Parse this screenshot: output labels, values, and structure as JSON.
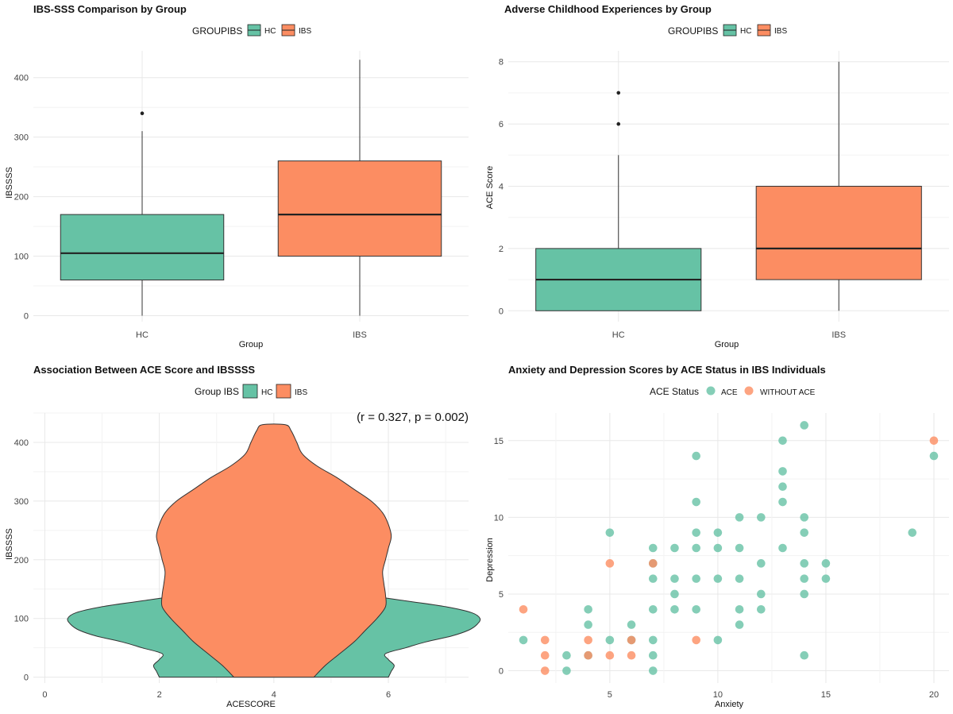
{
  "colors": {
    "hc": "#66C2A5",
    "ibs": "#FC8D62"
  },
  "chart_data": [
    {
      "type": "box",
      "title": "IBS-SSS Comparison by Group",
      "legend_title": "GROUPIBS",
      "legend": [
        "HC",
        "IBS"
      ],
      "xlabel": "Group",
      "ylabel": "IBSSSS",
      "categories": [
        "HC",
        "IBS"
      ],
      "ylim": [
        -10,
        445
      ],
      "yticks": [
        0,
        100,
        200,
        300,
        400
      ],
      "boxes": [
        {
          "name": "HC",
          "min": 0,
          "q1": 60,
          "median": 105,
          "q3": 170,
          "max": 310,
          "outliers": [
            340
          ]
        },
        {
          "name": "IBS",
          "min": 0,
          "q1": 100,
          "median": 170,
          "q3": 260,
          "max": 430,
          "outliers": []
        }
      ]
    },
    {
      "type": "box",
      "title": "Adverse Childhood Experiences by Group",
      "legend_title": "GROUPIBS",
      "legend": [
        "HC",
        "IBS"
      ],
      "xlabel": "Group",
      "ylabel": "ACE Score",
      "categories": [
        "HC",
        "IBS"
      ],
      "ylim": [
        -0.35,
        8.35
      ],
      "yticks": [
        0,
        2,
        4,
        6,
        8
      ],
      "boxes": [
        {
          "name": "HC",
          "min": 0,
          "q1": 0,
          "median": 1,
          "q3": 2,
          "max": 5,
          "outliers": [
            6,
            7
          ]
        },
        {
          "name": "IBS",
          "min": 0,
          "q1": 1,
          "median": 2,
          "q3": 4,
          "max": 8,
          "outliers": []
        }
      ]
    },
    {
      "type": "violin",
      "title": "Association Between ACE Score and IBSSSS",
      "legend_title": "Group IBS",
      "legend": [
        "HC",
        "IBS"
      ],
      "xlabel": "ACESCORE",
      "ylabel": "IBSSSS",
      "xlim": [
        -0.2,
        7.4
      ],
      "ylim": [
        -10,
        450
      ],
      "xticks": [
        0,
        2,
        4,
        6
      ],
      "yticks": [
        0,
        100,
        200,
        300,
        400
      ],
      "annotation": "(r = 0.327, p = 0.002)",
      "center_x": 4,
      "violins": [
        {
          "name": "HC",
          "halfwidth_profile": [
            [
              0,
              2.0
            ],
            [
              10,
              2.05
            ],
            [
              20,
              2.1
            ],
            [
              30,
              2.0
            ],
            [
              40,
              1.95
            ],
            [
              50,
              2.3
            ],
            [
              60,
              2.65
            ],
            [
              70,
              3.1
            ],
            [
              80,
              3.4
            ],
            [
              90,
              3.55
            ],
            [
              100,
              3.6
            ],
            [
              110,
              3.45
            ],
            [
              120,
              3.0
            ],
            [
              130,
              2.3
            ],
            [
              140,
              1.6
            ],
            [
              150,
              1.0
            ],
            [
              160,
              0.5
            ],
            [
              170,
              0.15
            ],
            [
              175,
              0
            ]
          ]
        },
        {
          "name": "IBS",
          "halfwidth_profile": [
            [
              0,
              0.7
            ],
            [
              20,
              0.9
            ],
            [
              40,
              1.15
            ],
            [
              60,
              1.4
            ],
            [
              80,
              1.6
            ],
            [
              100,
              1.8
            ],
            [
              120,
              1.95
            ],
            [
              140,
              1.95
            ],
            [
              160,
              1.92
            ],
            [
              180,
              1.9
            ],
            [
              200,
              1.95
            ],
            [
              220,
              2.0
            ],
            [
              240,
              2.05
            ],
            [
              260,
              2.0
            ],
            [
              280,
              1.9
            ],
            [
              300,
              1.7
            ],
            [
              320,
              1.4
            ],
            [
              340,
              1.1
            ],
            [
              360,
              0.75
            ],
            [
              380,
              0.5
            ],
            [
              400,
              0.4
            ],
            [
              420,
              0.3
            ],
            [
              430,
              0.2
            ]
          ]
        }
      ]
    },
    {
      "type": "scatter",
      "title": "Anxiety and Depression Scores by ACE Status in IBS Individuals",
      "legend_title": "ACE Status",
      "legend": [
        "ACE",
        "WITHOUT ACE"
      ],
      "xlabel": "Anxiety",
      "ylabel": "Depression",
      "xlim": [
        0.3,
        20.7
      ],
      "ylim": [
        -0.8,
        16.8
      ],
      "xticks": [
        5,
        10,
        15,
        20
      ],
      "yticks": [
        0,
        5,
        10,
        15
      ],
      "series": [
        {
          "name": "ACE",
          "points": [
            [
              1,
              2
            ],
            [
              3,
              1
            ],
            [
              3,
              0
            ],
            [
              4,
              4
            ],
            [
              4,
              3
            ],
            [
              4,
              1
            ],
            [
              5,
              9
            ],
            [
              5,
              2
            ],
            [
              6,
              3
            ],
            [
              6,
              2
            ],
            [
              7,
              8
            ],
            [
              7,
              7
            ],
            [
              7,
              6
            ],
            [
              7,
              4
            ],
            [
              7,
              2
            ],
            [
              7,
              1
            ],
            [
              7,
              0
            ],
            [
              8,
              8
            ],
            [
              8,
              6
            ],
            [
              8,
              5
            ],
            [
              8,
              4
            ],
            [
              9,
              14
            ],
            [
              9,
              11
            ],
            [
              9,
              9
            ],
            [
              9,
              8
            ],
            [
              9,
              6
            ],
            [
              9,
              4
            ],
            [
              10,
              9
            ],
            [
              10,
              8
            ],
            [
              10,
              6
            ],
            [
              10,
              2
            ],
            [
              11,
              10
            ],
            [
              11,
              8
            ],
            [
              11,
              6
            ],
            [
              11,
              4
            ],
            [
              11,
              3
            ],
            [
              12,
              10
            ],
            [
              12,
              7
            ],
            [
              12,
              5
            ],
            [
              12,
              4
            ],
            [
              13,
              15
            ],
            [
              13,
              13
            ],
            [
              13,
              12
            ],
            [
              13,
              11
            ],
            [
              13,
              8
            ],
            [
              14,
              16
            ],
            [
              14,
              10
            ],
            [
              14,
              9
            ],
            [
              14,
              7
            ],
            [
              14,
              6
            ],
            [
              14,
              5
            ],
            [
              14,
              1
            ],
            [
              15,
              7
            ],
            [
              15,
              6
            ],
            [
              19,
              9
            ],
            [
              20,
              14
            ]
          ]
        },
        {
          "name": "WITHOUT ACE",
          "points": [
            [
              1,
              4
            ],
            [
              2,
              2
            ],
            [
              2,
              1
            ],
            [
              2,
              0
            ],
            [
              4,
              2
            ],
            [
              4,
              1
            ],
            [
              5,
              7
            ],
            [
              5,
              1
            ],
            [
              6,
              2
            ],
            [
              6,
              1
            ],
            [
              7,
              7
            ],
            [
              9,
              2
            ],
            [
              20,
              15
            ]
          ]
        }
      ]
    }
  ]
}
